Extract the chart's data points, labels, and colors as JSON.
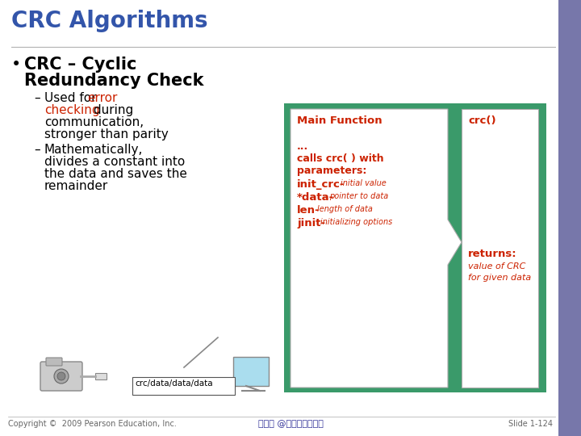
{
  "title": "CRC Algorithms",
  "title_color": "#3355aa",
  "slide_bg": "#ffffff",
  "right_bg": "#7777aa",
  "green_color": "#3a9a6a",
  "red_color": "#cc2200",
  "footer_left": "Copyright ©  2009 Pearson Education, Inc.",
  "footer_center": "蔡文能 @交通大學資工系",
  "footer_right": "Slide 1-124",
  "crc_path_label": "crc/data/data/data",
  "main_func_label": "Main Function",
  "crc_label": "crc()"
}
